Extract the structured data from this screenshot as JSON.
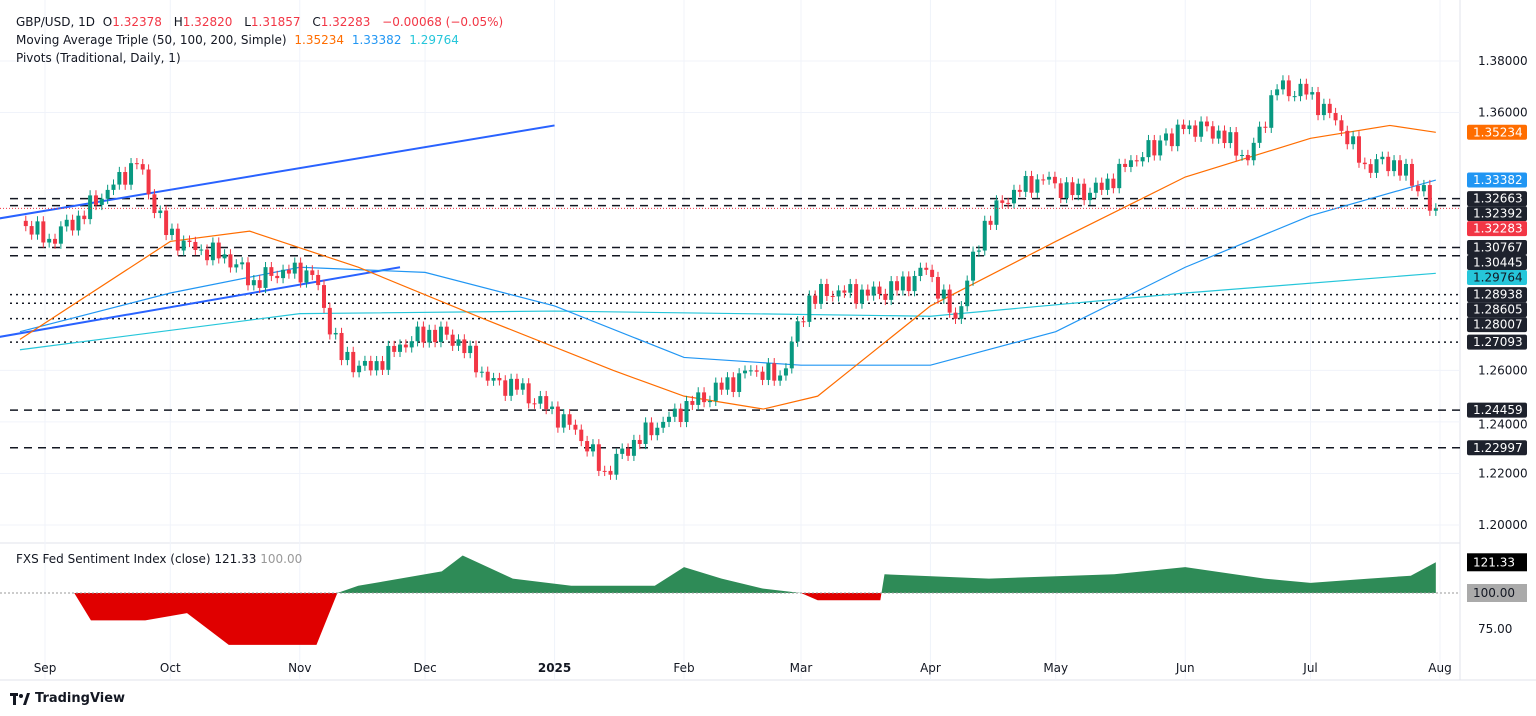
{
  "header": {
    "symbol": "GBP/USD, 1D",
    "o_label": "O",
    "o": "1.32378",
    "h_label": "H",
    "h": "1.32820",
    "l_label": "L",
    "l": "1.31857",
    "c_label": "C",
    "c": "1.32283",
    "change": "−0.00068 (−0.05%)",
    "ma_label": "Moving Average Triple (50, 100, 200, Simple)",
    "ma50": "1.35234",
    "ma100": "1.33382",
    "ma200": "1.29764",
    "pivots_label": "Pivots (Traditional, Daily, 1)"
  },
  "indicator": {
    "label": "FXS Fed Sentiment Index (close)",
    "value": "121.33",
    "baseline": "100.00"
  },
  "brand": "TradingView",
  "colors": {
    "up": "#089981",
    "down": "#f23645",
    "ma50": "#ff6d00",
    "ma100": "#2196f3",
    "ma200": "#26c6da",
    "trend": "#2962ff",
    "sent_up": "#2e8b57",
    "sent_down": "#e00000"
  },
  "chart_data": {
    "type": "candlestick",
    "x_ticks": [
      "Sep",
      "Oct",
      "Nov",
      "Dec",
      "2025",
      "Feb",
      "Mar",
      "Apr",
      "May",
      "Jun",
      "Jul",
      "Aug"
    ],
    "y_ticks": [
      "1.38000",
      "1.36000",
      "1.26000",
      "1.24000",
      "1.22000",
      "1.20000"
    ],
    "ylim": [
      1.195,
      1.39
    ],
    "closes": [
      [
        "2024-08-26",
        1.318
      ],
      [
        "2024-09-02",
        1.311
      ],
      [
        "2024-09-09",
        1.32
      ],
      [
        "2024-09-16",
        1.33
      ],
      [
        "2024-09-23",
        1.34
      ],
      [
        "2024-09-30",
        1.3125
      ],
      [
        "2024-10-07",
        1.3067
      ],
      [
        "2024-10-14",
        1.305
      ],
      [
        "2024-10-21",
        1.295
      ],
      [
        "2024-10-28",
        1.299
      ],
      [
        "2024-11-04",
        1.297
      ],
      [
        "2024-11-11",
        1.264
      ],
      [
        "2024-11-18",
        1.26
      ],
      [
        "2024-11-25",
        1.27
      ],
      [
        "2024-12-02",
        1.2757
      ],
      [
        "2024-12-09",
        1.272
      ],
      [
        "2024-12-16",
        1.256
      ],
      [
        "2024-12-23",
        1.2525
      ],
      [
        "2024-12-30",
        1.245
      ],
      [
        "2025-01-06",
        1.237
      ],
      [
        "2025-01-13",
        1.221
      ],
      [
        "2025-01-20",
        1.233
      ],
      [
        "2025-01-27",
        1.24
      ],
      [
        "2025-02-03",
        1.2466
      ],
      [
        "2025-02-10",
        1.2525
      ],
      [
        "2025-02-17",
        1.26
      ],
      [
        "2025-02-24",
        1.258
      ],
      [
        "2025-03-03",
        1.289
      ],
      [
        "2025-03-10",
        1.291
      ],
      [
        "2025-03-17",
        1.289
      ],
      [
        "2025-03-24",
        1.291
      ],
      [
        "2025-03-31",
        1.299
      ],
      [
        "2025-04-07",
        1.28
      ],
      [
        "2025-04-14",
        1.318
      ],
      [
        "2025-04-21",
        1.33
      ],
      [
        "2025-04-28",
        1.334
      ],
      [
        "2025-05-05",
        1.328
      ],
      [
        "2025-05-12",
        1.33
      ],
      [
        "2025-05-19",
        1.3415
      ],
      [
        "2025-06-02",
        1.355
      ],
      [
        "2025-06-09",
        1.353
      ],
      [
        "2025-06-16",
        1.3415
      ],
      [
        "2025-06-23",
        1.369
      ],
      [
        "2025-06-30",
        1.367
      ],
      [
        "2025-07-07",
        1.357
      ],
      [
        "2025-07-14",
        1.34
      ],
      [
        "2025-07-21",
        1.3415
      ],
      [
        "2025-07-31",
        1.32283
      ]
    ],
    "ma50": [
      [
        "2024-08-26",
        1.272
      ],
      [
        "2024-10-01",
        1.31
      ],
      [
        "2024-10-20",
        1.314
      ],
      [
        "2024-11-15",
        1.3
      ],
      [
        "2024-12-15",
        1.28
      ],
      [
        "2025-01-15",
        1.26
      ],
      [
        "2025-02-01",
        1.25
      ],
      [
        "2025-02-20",
        1.245
      ],
      [
        "2025-03-05",
        1.25
      ],
      [
        "2025-04-01",
        1.285
      ],
      [
        "2025-05-01",
        1.31
      ],
      [
        "2025-06-01",
        1.335
      ],
      [
        "2025-07-01",
        1.35
      ],
      [
        "2025-07-20",
        1.355
      ],
      [
        "2025-07-31",
        1.35234
      ]
    ],
    "ma100": [
      [
        "2024-08-26",
        1.275
      ],
      [
        "2024-10-01",
        1.29
      ],
      [
        "2024-11-01",
        1.3
      ],
      [
        "2024-12-01",
        1.298
      ],
      [
        "2025-01-01",
        1.285
      ],
      [
        "2025-02-01",
        1.265
      ],
      [
        "2025-03-01",
        1.262
      ],
      [
        "2025-04-01",
        1.262
      ],
      [
        "2025-05-01",
        1.275
      ],
      [
        "2025-06-01",
        1.3
      ],
      [
        "2025-07-01",
        1.32
      ],
      [
        "2025-07-31",
        1.33382
      ]
    ],
    "ma200": [
      [
        "2024-08-26",
        1.268
      ],
      [
        "2024-11-01",
        1.282
      ],
      [
        "2025-01-01",
        1.283
      ],
      [
        "2025-04-01",
        1.281
      ],
      [
        "2025-06-01",
        1.29
      ],
      [
        "2025-07-31",
        1.29764
      ]
    ],
    "pivots": [
      {
        "v": 1.32663,
        "label": "1.32663",
        "style": "dash"
      },
      {
        "v": 1.32392,
        "label": "1.32392",
        "style": "dash"
      },
      {
        "v": 1.30767,
        "label": "1.30767",
        "style": "dash"
      },
      {
        "v": 1.30445,
        "label": "1.30445",
        "style": "dash"
      },
      {
        "v": 1.28938,
        "label": "1.28938",
        "style": "dot"
      },
      {
        "v": 1.28605,
        "label": "1.28605",
        "style": "dot"
      },
      {
        "v": 1.28007,
        "label": "1.28007",
        "style": "dot"
      },
      {
        "v": 1.27093,
        "label": "1.27093",
        "style": "dot"
      },
      {
        "v": 1.24459,
        "label": "1.24459",
        "style": "dash"
      },
      {
        "v": 1.22997,
        "label": "1.22997",
        "style": "dash"
      }
    ],
    "trendlines": [
      [
        [
          "2024-08-26",
          1.318
        ],
        [
          "2025-01-01",
          1.355
        ]
      ],
      [
        [
          "2024-08-26",
          1.272
        ],
        [
          "2024-11-25",
          1.3
        ]
      ]
    ],
    "sentiment": {
      "ylim": [
        60,
        130
      ],
      "y_ticks": [
        "75.00"
      ],
      "baseline": 100,
      "values": [
        [
          "2024-08-26",
          100
        ],
        [
          "2024-09-08",
          100
        ],
        [
          "2024-09-12",
          81
        ],
        [
          "2024-09-25",
          81
        ],
        [
          "2024-10-05",
          86
        ],
        [
          "2024-10-15",
          64
        ],
        [
          "2024-11-05",
          64
        ],
        [
          "2024-11-10",
          100
        ],
        [
          "2024-11-15",
          105
        ],
        [
          "2024-12-05",
          115
        ],
        [
          "2024-12-10",
          126
        ],
        [
          "2024-12-22",
          110
        ],
        [
          "2025-01-05",
          105
        ],
        [
          "2025-01-25",
          105
        ],
        [
          "2025-02-01",
          118
        ],
        [
          "2025-02-10",
          110
        ],
        [
          "2025-02-20",
          103
        ],
        [
          "2025-03-01",
          100
        ],
        [
          "2025-03-05",
          95
        ],
        [
          "2025-03-20",
          95
        ],
        [
          "2025-03-21",
          113
        ],
        [
          "2025-04-15",
          110
        ],
        [
          "2025-05-15",
          113
        ],
        [
          "2025-06-01",
          118
        ],
        [
          "2025-06-20",
          110
        ],
        [
          "2025-07-01",
          107
        ],
        [
          "2025-07-15",
          110
        ],
        [
          "2025-07-25",
          112
        ],
        [
          "2025-07-31",
          121.33
        ]
      ]
    }
  }
}
